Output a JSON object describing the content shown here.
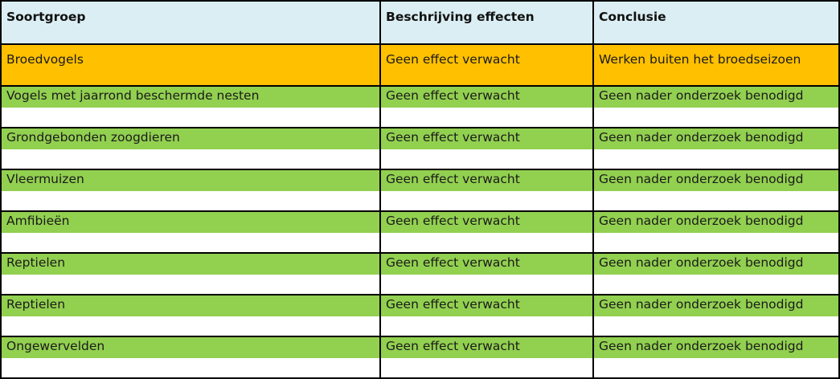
{
  "table": {
    "headers": [
      "Soortgroep",
      "Beschrijving effecten",
      "Conclusie"
    ],
    "rows": [
      {
        "soortgroep": "Broedvogels",
        "effecten": "Geen effect verwacht",
        "conclusie": "Werken buiten het broedseizoen",
        "color": "#ffc000"
      },
      {
        "soortgroep": "Vogels met jaarrond beschermde nesten",
        "effecten": "Geen effect verwacht",
        "conclusie": "Geen nader onderzoek benodigd",
        "color": "#92d050"
      },
      {
        "soortgroep": "Grondgebonden zoogdieren",
        "effecten": "Geen effect verwacht",
        "conclusie": "Geen nader onderzoek benodigd",
        "color": "#92d050"
      },
      {
        "soortgroep": "Vleermuizen",
        "effecten": "Geen effect verwacht",
        "conclusie": "Geen nader onderzoek benodigd",
        "color": "#92d050"
      },
      {
        "soortgroep": "Amfibieën",
        "effecten": "Geen effect verwacht",
        "conclusie": "Geen nader onderzoek benodigd",
        "color": "#92d050"
      },
      {
        "soortgroep": "Reptielen",
        "effecten": "Geen effect verwacht",
        "conclusie": "Geen nader onderzoek benodigd",
        "color": "#92d050"
      },
      {
        "soortgroep": "Reptielen",
        "effecten": "Geen effect verwacht",
        "conclusie": "Geen nader onderzoek benodigd",
        "color": "#92d050"
      },
      {
        "soortgroep": "Ongewervelden",
        "effecten": "Geen effect verwacht",
        "conclusie": "Geen nader onderzoek benodigd",
        "color": "#92d050"
      }
    ],
    "header_color": "#daeef3"
  }
}
